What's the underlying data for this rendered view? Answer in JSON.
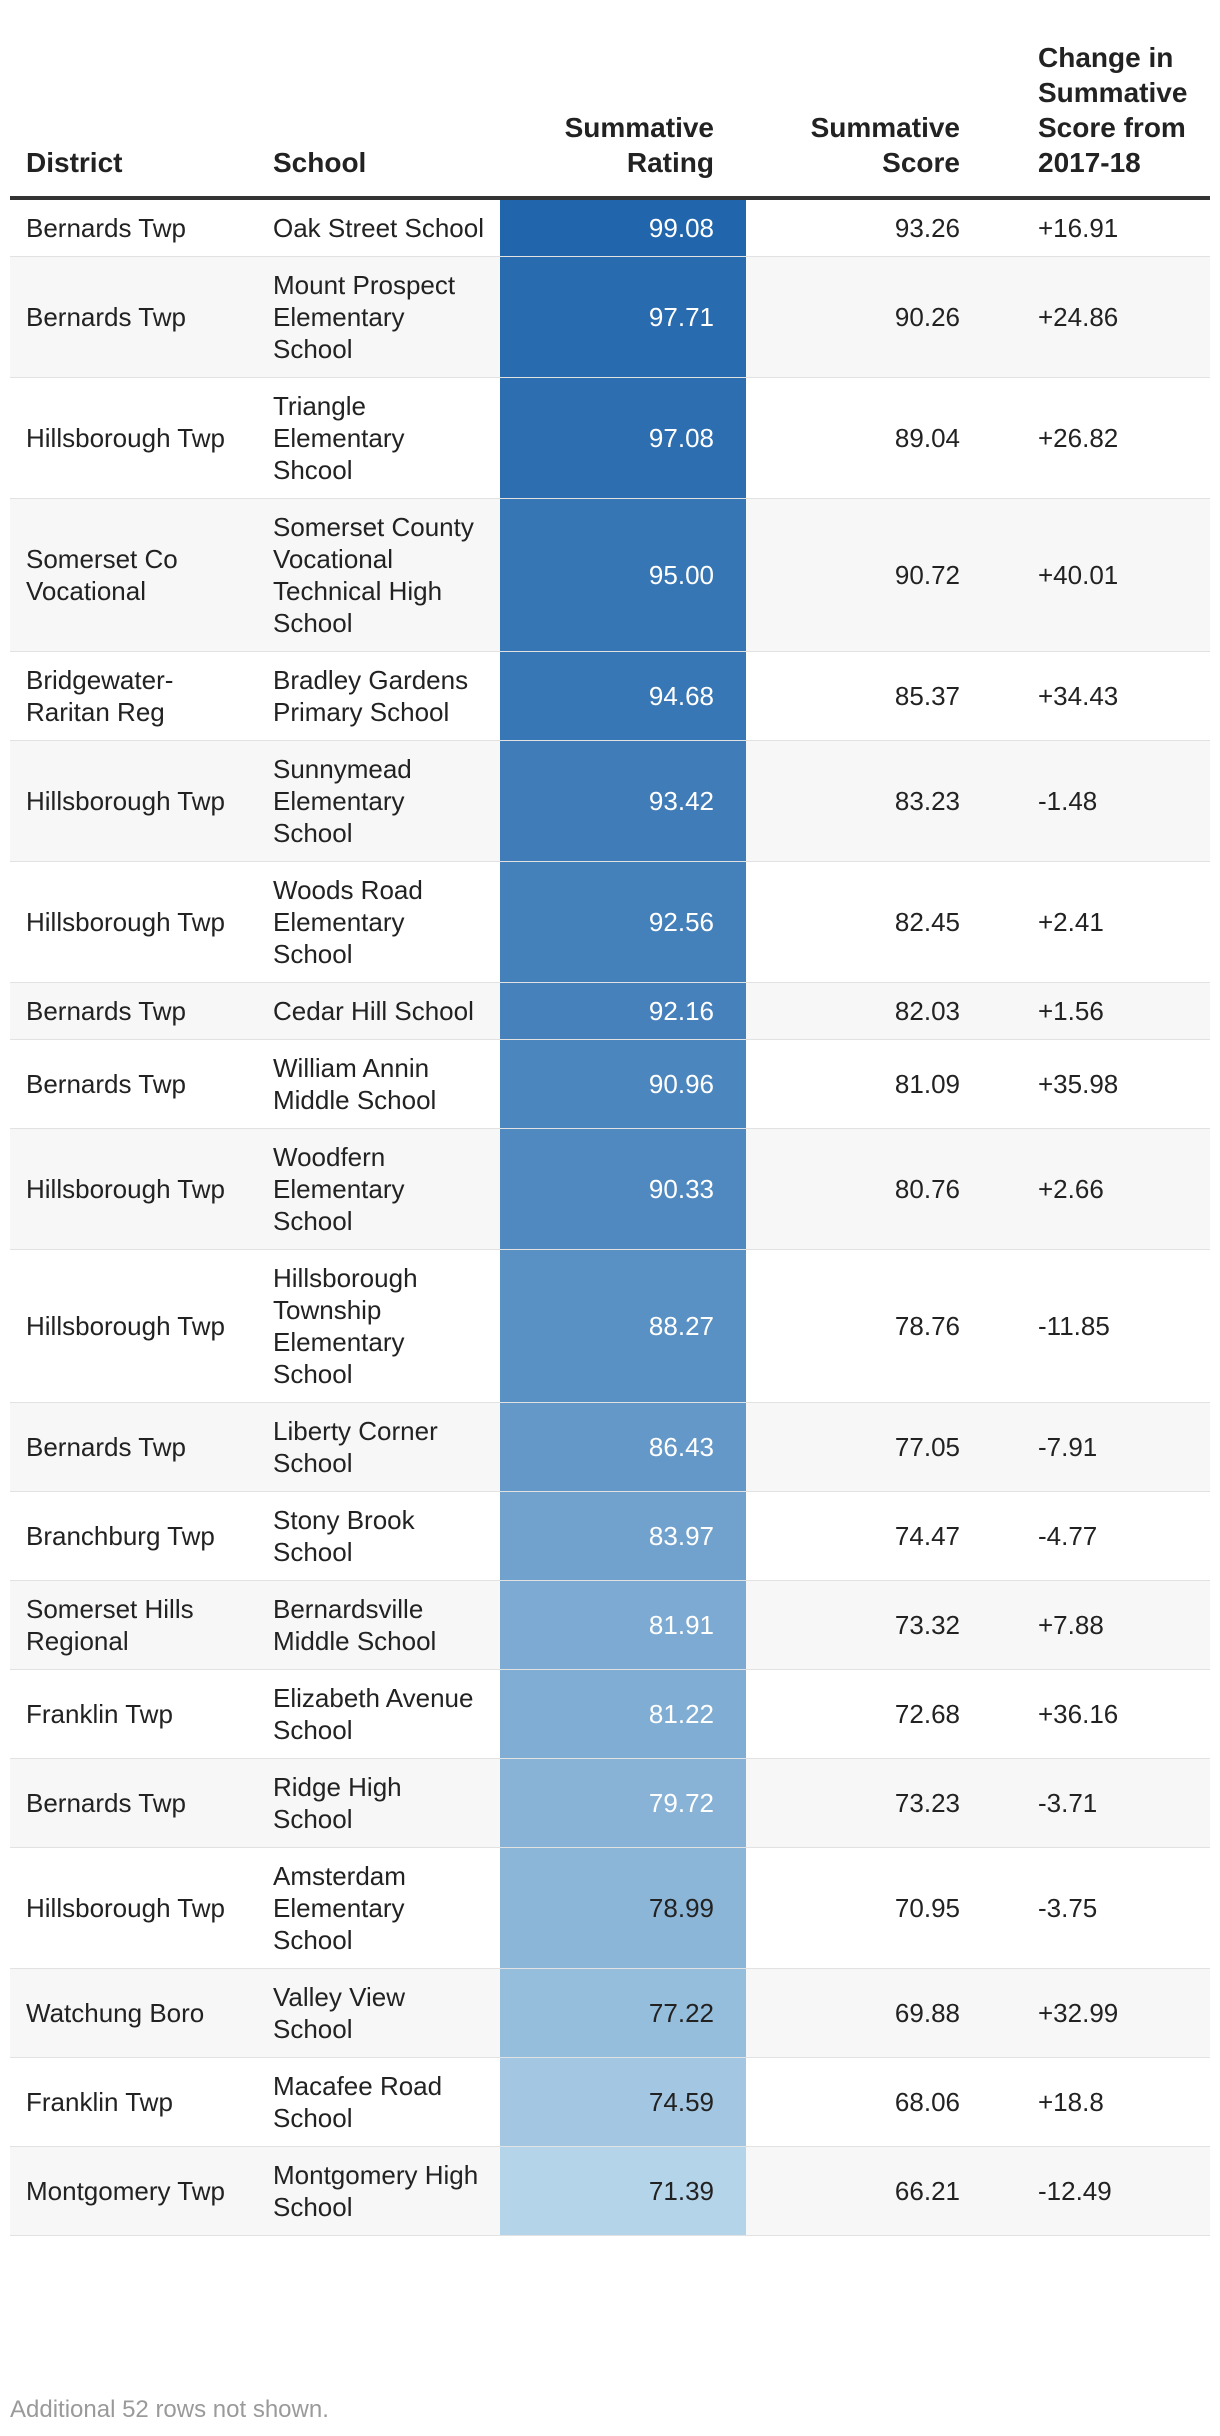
{
  "chart_data": {
    "type": "table",
    "columns": [
      "District",
      "School",
      "Summative Rating",
      "Summative Score",
      "Change in Summative Score from 2017-18"
    ],
    "rows": [
      [
        "Bernards Twp",
        "Oak Street School",
        "99.08",
        "93.26",
        "+16.91"
      ],
      [
        "Bernards Twp",
        "Mount Prospect Elementary School",
        "97.71",
        "90.26",
        "+24.86"
      ],
      [
        "Hillsborough Twp",
        "Triangle Elementary Shcool",
        "97.08",
        "89.04",
        "+26.82"
      ],
      [
        "Somerset Co Vocational",
        "Somerset County Vocational Technical High School",
        "95.00",
        "90.72",
        "+40.01"
      ],
      [
        "Bridgewater-Raritan Reg",
        "Bradley Gardens Primary School",
        "94.68",
        "85.37",
        "+34.43"
      ],
      [
        "Hillsborough Twp",
        "Sunnymead Elementary School",
        "93.42",
        "83.23",
        "-1.48"
      ],
      [
        "Hillsborough Twp",
        "Woods Road Elementary School",
        "92.56",
        "82.45",
        "+2.41"
      ],
      [
        "Bernards Twp",
        "Cedar Hill School",
        "92.16",
        "82.03",
        "+1.56"
      ],
      [
        "Bernards Twp",
        "William Annin Middle School",
        "90.96",
        "81.09",
        "+35.98"
      ],
      [
        "Hillsborough Twp",
        "Woodfern Elementary School",
        "90.33",
        "80.76",
        "+2.66"
      ],
      [
        "Hillsborough Twp",
        "Hillsborough Township Elementary School",
        "88.27",
        "78.76",
        "-11.85"
      ],
      [
        "Bernards Twp",
        "Liberty Corner School",
        "86.43",
        "77.05",
        "-7.91"
      ],
      [
        "Branchburg Twp",
        "Stony Brook School",
        "83.97",
        "74.47",
        "-4.77"
      ],
      [
        "Somerset Hills Regional",
        "Bernardsville Middle School",
        "81.91",
        "73.32",
        "+7.88"
      ],
      [
        "Franklin Twp",
        "Elizabeth Avenue School",
        "81.22",
        "72.68",
        "+36.16"
      ],
      [
        "Bernards Twp",
        "Ridge High School",
        "79.72",
        "73.23",
        "-3.71"
      ],
      [
        "Hillsborough Twp",
        "Amsterdam Elementary School",
        "78.99",
        "70.95",
        "-3.75"
      ],
      [
        "Watchung Boro",
        "Valley View School",
        "77.22",
        "69.88",
        "+32.99"
      ],
      [
        "Franklin Twp",
        "Macafee Road School",
        "74.59",
        "68.06",
        "+18.8"
      ],
      [
        "Montgomery Twp",
        "Montgomery High School",
        "71.39",
        "66.21",
        "-12.49"
      ]
    ],
    "heat_column": "Summative Rating",
    "heat_colors": {
      "low": "#b4d4e9",
      "high": "#2166ac"
    },
    "footnote": "Additional 52 rows not shown."
  }
}
